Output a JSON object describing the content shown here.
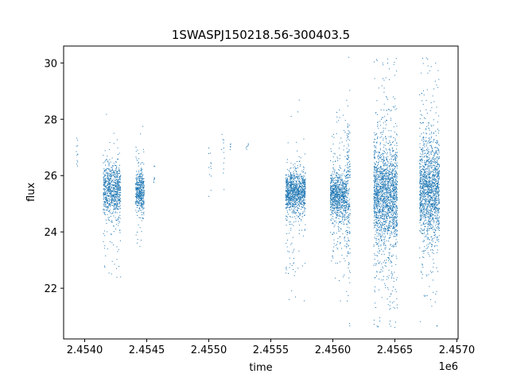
{
  "chart_data": {
    "type": "scatter",
    "title": "1SWASPJ150218.56-300403.5",
    "xlabel": "time",
    "ylabel": "flux",
    "x_offset_label": "1e6",
    "xlim": [
      2453830,
      2457010
    ],
    "ylim": [
      20.2,
      30.6
    ],
    "x_ticks": [
      2454000,
      2454500,
      2455000,
      2455500,
      2456000,
      2456500,
      2457000
    ],
    "x_tick_labels": [
      "2.4540",
      "2.4545",
      "2.4550",
      "2.4555",
      "2.4560",
      "2.4565",
      "2.4570"
    ],
    "y_ticks": [
      22,
      24,
      26,
      28,
      30
    ],
    "y_tick_labels": [
      "22",
      "24",
      "26",
      "28",
      "30"
    ],
    "grid": false,
    "marker_color": "#1f77b4",
    "series": [
      {
        "clusters": [
          {
            "x0": 2453930,
            "x1": 2453945,
            "center": 26.9,
            "sd": 0.35,
            "n": 12
          },
          {
            "x0": 2454150,
            "x1": 2454290,
            "center": 25.5,
            "sd": 0.45,
            "n": 700
          },
          {
            "x0": 2454150,
            "x1": 2454290,
            "center": 24.7,
            "sd": 1.1,
            "n": 120
          },
          {
            "x0": 2454410,
            "x1": 2454480,
            "center": 25.4,
            "sd": 0.35,
            "n": 400
          },
          {
            "x0": 2454410,
            "x1": 2454480,
            "center": 25.6,
            "sd": 1.0,
            "n": 60
          },
          {
            "x0": 2454555,
            "x1": 2454565,
            "center": 25.9,
            "sd": 0.2,
            "n": 8
          },
          {
            "x0": 2455000,
            "x1": 2455020,
            "center": 26.3,
            "sd": 0.45,
            "n": 12
          },
          {
            "x0": 2455100,
            "x1": 2455130,
            "center": 26.7,
            "sd": 0.5,
            "n": 12
          },
          {
            "x0": 2455170,
            "x1": 2455180,
            "center": 27.0,
            "sd": 0.15,
            "n": 5
          },
          {
            "x0": 2455300,
            "x1": 2455320,
            "center": 27.0,
            "sd": 0.15,
            "n": 6
          },
          {
            "x0": 2455620,
            "x1": 2455780,
            "center": 25.4,
            "sd": 0.35,
            "n": 900
          },
          {
            "x0": 2455620,
            "x1": 2455780,
            "center": 25.0,
            "sd": 1.3,
            "n": 160
          },
          {
            "x0": 2455980,
            "x1": 2456110,
            "center": 25.3,
            "sd": 0.4,
            "n": 700
          },
          {
            "x0": 2455980,
            "x1": 2456110,
            "center": 25.0,
            "sd": 1.4,
            "n": 200
          },
          {
            "x0": 2456110,
            "x1": 2456140,
            "center": 25.3,
            "sd": 1.5,
            "n": 200
          },
          {
            "x0": 2456330,
            "x1": 2456520,
            "center": 25.3,
            "sd": 0.8,
            "n": 1400
          },
          {
            "x0": 2456330,
            "x1": 2456520,
            "center": 25.3,
            "sd": 2.2,
            "n": 500
          },
          {
            "x0": 2456700,
            "x1": 2456860,
            "center": 25.5,
            "sd": 0.8,
            "n": 1100
          },
          {
            "x0": 2456700,
            "x1": 2456860,
            "center": 25.5,
            "sd": 2.0,
            "n": 400
          }
        ]
      }
    ]
  }
}
